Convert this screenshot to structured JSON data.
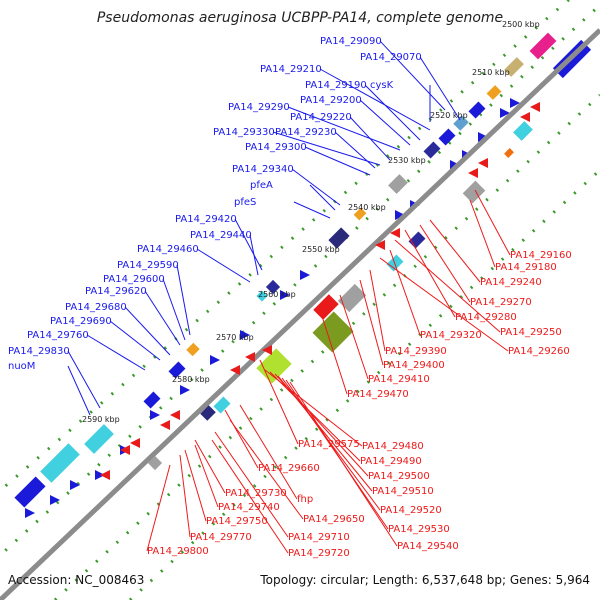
{
  "title": "Pseudomonas aeruginosa UCBPP-PA14, complete genome",
  "accession": "Accession: NC_008463",
  "summary": "Topology: circular; Length: 6,537,648 bp; Genes: 5,964",
  "colors": {
    "upper_label": "#1a1aee",
    "lower_label": "#ee1a1a",
    "backbone": "#8c8c8c",
    "dots": "#3a9a2a"
  },
  "kbp_ticks": [
    "2500 kbp",
    "2510 kbp",
    "2520 kbp",
    "2530 kbp",
    "2540 kbp",
    "2550 kbp",
    "2560 kbp",
    "2570 kbp",
    "2580 kbp",
    "2590 kbp"
  ],
  "upper_labels": [
    "PA14_29090",
    "PA14_29070",
    "PA14_29210",
    "PA14_29190",
    "cysK",
    "PA14_29200",
    "PA14_29290",
    "PA14_29220",
    "PA14_29330",
    "PA14_29230",
    "PA14_29300",
    "PA14_29340",
    "pfeA",
    "pfeS",
    "PA14_29420",
    "PA14_29440",
    "PA14_29460",
    "PA14_29590",
    "PA14_29600",
    "PA14_29620",
    "PA14_29680",
    "PA14_29690",
    "PA14_29760",
    "PA14_29830",
    "nuoM"
  ],
  "lower_labels": [
    "PA14_29160",
    "PA14_29180",
    "PA14_29240",
    "PA14_29270",
    "PA14_29280",
    "PA14_29250",
    "PA14_29320",
    "PA14_29260",
    "PA14_29390",
    "PA14_29400",
    "PA14_29410",
    "PA14_29470",
    "PA14_29575",
    "PA14_29480",
    "PA14_29490",
    "PA14_29500",
    "PA14_29660",
    "PA14_29510",
    "fhp",
    "PA14_29730",
    "PA14_29740",
    "PA14_29520",
    "PA14_29650",
    "PA14_29750",
    "PA14_29530",
    "PA14_29770",
    "PA14_29710",
    "PA14_29540",
    "PA14_29720",
    "PA14_29800"
  ]
}
